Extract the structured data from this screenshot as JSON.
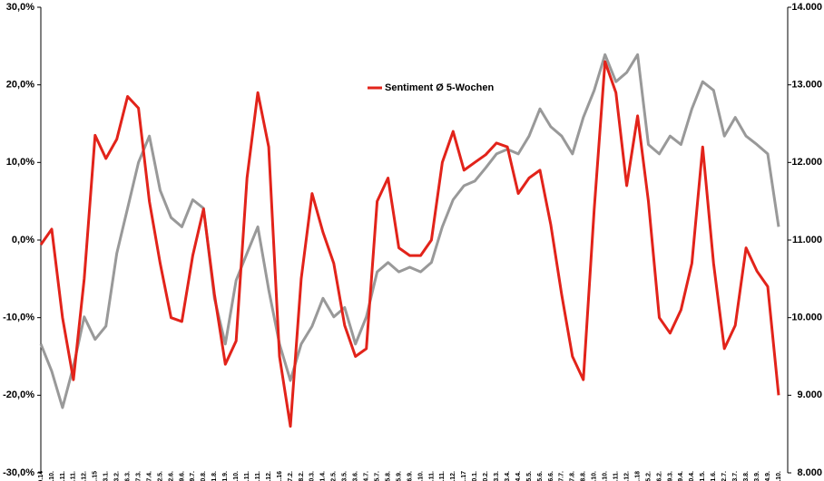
{
  "chart_data": {
    "type": "line",
    "legend": "top-center",
    "categories": [
      "19.09.14",
      "20.10.",
      "31.11.",
      "21.11.",
      "12.12.",
      "02.01.15",
      "23.1.",
      "13.2.",
      "6.3.",
      "27.3.",
      "17.4.",
      "22.5.",
      "12.6.",
      "29.6.",
      "19.7.",
      "10.8.",
      "31.8.",
      "21.9.",
      "12.10.",
      "2.11.",
      "23.11.",
      "14.12.",
      "17.01.16",
      "7.2.",
      "28.2.",
      "20.3.",
      "11.4.",
      "2.5.",
      "23.5.",
      "13.6.",
      "4.7.",
      "25.7.",
      "15.8.",
      "5.9.",
      "26.9.",
      "17.10.",
      "7.11.",
      "28.11.",
      "19.12.",
      "09.01.17",
      "30.1.",
      "20.2.",
      "13.3.",
      "3.4.",
      "24.4.",
      "15.5.",
      "5.6.",
      "26.6.",
      "17.7.",
      "7.8.",
      "28.8.",
      "9.10.",
      "30.10.",
      "20.11.",
      "11.12.",
      "15.01.18",
      "5.2.",
      "26.2.",
      "19.3.",
      "9.4.",
      "30.4.",
      "21.5.",
      "11.6.",
      "2.7.",
      "23.7.",
      "13.8.",
      "3.9.",
      "24.9.",
      "15.10."
    ],
    "series": [
      {
        "name": "Sentiment Ø 5-Wochen",
        "color": "#e2231a",
        "axis": "y",
        "values": [
          -0.6,
          1.4,
          -10,
          -18,
          -5,
          13.5,
          10.5,
          13,
          18.5,
          17,
          5,
          -3,
          -10,
          -10.5,
          -2,
          4,
          -7,
          -16,
          -13,
          8,
          19,
          12,
          -15,
          -24,
          -5,
          6,
          1,
          -3,
          -11,
          -15,
          -14,
          5,
          8,
          -1,
          -2,
          -2,
          0,
          10,
          14,
          9,
          10,
          11,
          12.5,
          12,
          6,
          8,
          9,
          2,
          -7,
          -15,
          -18,
          4,
          23,
          19,
          7,
          16,
          5,
          -10,
          -12,
          -9,
          -3,
          12,
          -3,
          -14,
          -11,
          -1,
          -4,
          -6,
          -20
        ]
      },
      {
        "color": "#999999",
        "axis": "y2",
        "values": [
          9660,
          9310,
          8840,
          9370,
          10010,
          9720,
          9890,
          10830,
          11410,
          12000,
          12340,
          11640,
          11290,
          11170,
          11520,
          11410,
          10250,
          9660,
          10480,
          10830,
          11170,
          10360,
          9660,
          9190,
          9660,
          9890,
          10250,
          10010,
          10130,
          9660,
          10010,
          10590,
          10710,
          10590,
          10650,
          10590,
          10710,
          11170,
          11520,
          11700,
          11760,
          11930,
          12110,
          12170,
          12110,
          12340,
          12690,
          12460,
          12340,
          12110,
          12580,
          12930,
          13390,
          13040,
          13160,
          13390,
          12230,
          12110,
          12340,
          12230,
          12690,
          13040,
          12930,
          12340,
          12580,
          12340,
          12230,
          12110,
          11170
        ]
      }
    ],
    "ylim": [
      -30,
      30
    ],
    "yticks": [
      {
        "value": -30,
        "label": "-30,0%"
      },
      {
        "value": -20,
        "label": "-20,0%"
      },
      {
        "value": -10,
        "label": "-10,0%"
      },
      {
        "value": 0,
        "label": "0,0%"
      },
      {
        "value": 10,
        "label": "10,0%"
      },
      {
        "value": 20,
        "label": "20,0%"
      },
      {
        "value": 30,
        "label": "30,0%"
      }
    ],
    "y2lim": [
      8000,
      14000
    ],
    "y2ticks": [
      {
        "value": 8000,
        "label": "8.000"
      },
      {
        "value": 9000,
        "label": "9.000"
      },
      {
        "value": 10000,
        "label": "10.000"
      },
      {
        "value": 11000,
        "label": "11.000"
      },
      {
        "value": 12000,
        "label": "12.000"
      },
      {
        "value": 13000,
        "label": "13.000"
      },
      {
        "value": 14000,
        "label": "14.000"
      }
    ]
  }
}
